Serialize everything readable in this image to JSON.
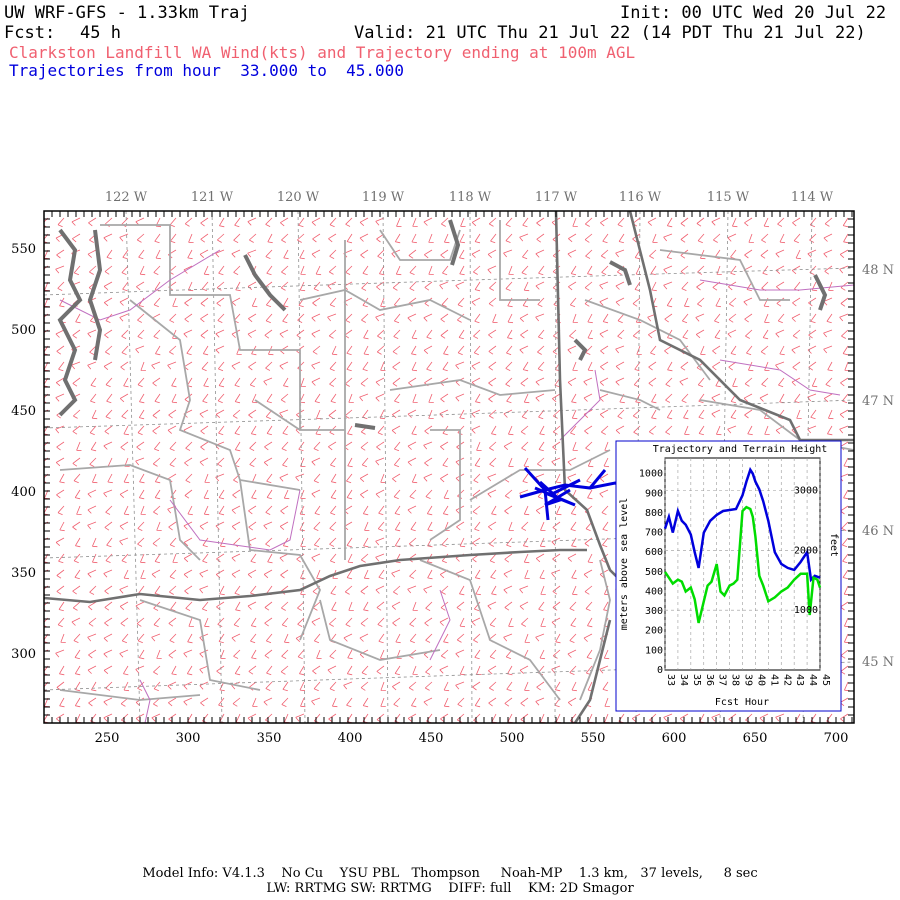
{
  "header": {
    "model": "UW WRF-GFS - 1.33km Traj",
    "init": "Init: 00 UTC Wed 20 Jul 22",
    "fcst_label": "Fcst:",
    "fcst_value": "45 h",
    "valid": "Valid: 21 UTC Thu 21 Jul 22 (14 PDT Thu 21 Jul 22)",
    "subtitle": "Clarkston Landfill WA Wind(kts) and Trajectory ending at 100m AGL",
    "traj_range": "Trajectories from hour  33.000 to  45.000"
  },
  "colors": {
    "wind": "#f06070",
    "trajectory": "#0000dd",
    "terrain": "#00dd00",
    "subtitle": "#f06070",
    "traj_text": "#0000dd",
    "state_border": "#707070",
    "county": "#a0a0a0",
    "river": "#c070c0"
  },
  "map": {
    "top_lon_labels": [
      "122 W",
      "121 W",
      "120 W",
      "119 W",
      "118 W",
      "117 W",
      "116 W",
      "115 W",
      "114 W"
    ],
    "bottom_ticks": [
      "250",
      "300",
      "350",
      "400",
      "450",
      "500",
      "550",
      "600",
      "650",
      "700"
    ],
    "left_ticks": [
      "550",
      "500",
      "450",
      "400",
      "350",
      "300"
    ],
    "right_lat_labels": [
      "48 N",
      "47 N",
      "46 N",
      "45 N"
    ]
  },
  "inset": {
    "title": "Trajectory and Terrain Height",
    "ylabel_left": "meters above sea level",
    "ylabel_right": "feet",
    "xlabel": "Fcst Hour",
    "left_ticks": [
      "0",
      "100",
      "200",
      "300",
      "400",
      "500",
      "600",
      "700",
      "800",
      "900",
      "1000"
    ],
    "right_ticks": [
      "1000",
      "2000",
      "3000"
    ],
    "x_ticks": [
      "33",
      "34",
      "35",
      "36",
      "37",
      "38",
      "39",
      "40",
      "41",
      "42",
      "43",
      "44",
      "45"
    ]
  },
  "chart_data": {
    "type": "line",
    "title": "Trajectory and Terrain Height",
    "xlabel": "Fcst Hour",
    "ylabel": "meters above sea level",
    "xlim": [
      33,
      45
    ],
    "ylim": [
      0,
      1080
    ],
    "series": [
      {
        "name": "trajectory",
        "x": [
          33,
          33.3,
          33.6,
          34,
          34.3,
          34.6,
          35,
          35.3,
          35.6,
          36,
          36.5,
          37,
          37.5,
          38,
          38.5,
          39,
          39.3,
          39.6,
          39.8,
          40,
          40.3,
          40.6,
          41,
          41.5,
          42,
          42.5,
          43,
          43.5,
          44,
          44.3,
          44.6,
          45
        ],
        "y": [
          720,
          780,
          700,
          810,
          760,
          740,
          690,
          600,
          520,
          700,
          760,
          790,
          810,
          815,
          820,
          890,
          960,
          1020,
          1000,
          960,
          920,
          860,
          760,
          600,
          540,
          520,
          510,
          550,
          600,
          460,
          480,
          470
        ]
      },
      {
        "name": "terrain",
        "x": [
          33,
          33.3,
          33.6,
          34,
          34.3,
          34.6,
          35,
          35.3,
          35.6,
          36,
          36.3,
          36.6,
          37,
          37.3,
          37.6,
          38,
          38.3,
          38.6,
          39,
          39.3,
          39.6,
          39.8,
          40,
          40.3,
          40.6,
          41,
          41.5,
          42,
          42.5,
          43,
          43.5,
          44,
          44.2,
          44.5,
          44.8,
          45
        ],
        "y": [
          500,
          470,
          440,
          460,
          450,
          400,
          420,
          360,
          240,
          350,
          430,
          450,
          540,
          400,
          380,
          430,
          440,
          460,
          810,
          830,
          820,
          780,
          680,
          480,
          430,
          350,
          370,
          400,
          420,
          460,
          490,
          490,
          280,
          470,
          460,
          420
        ]
      }
    ]
  }
}
